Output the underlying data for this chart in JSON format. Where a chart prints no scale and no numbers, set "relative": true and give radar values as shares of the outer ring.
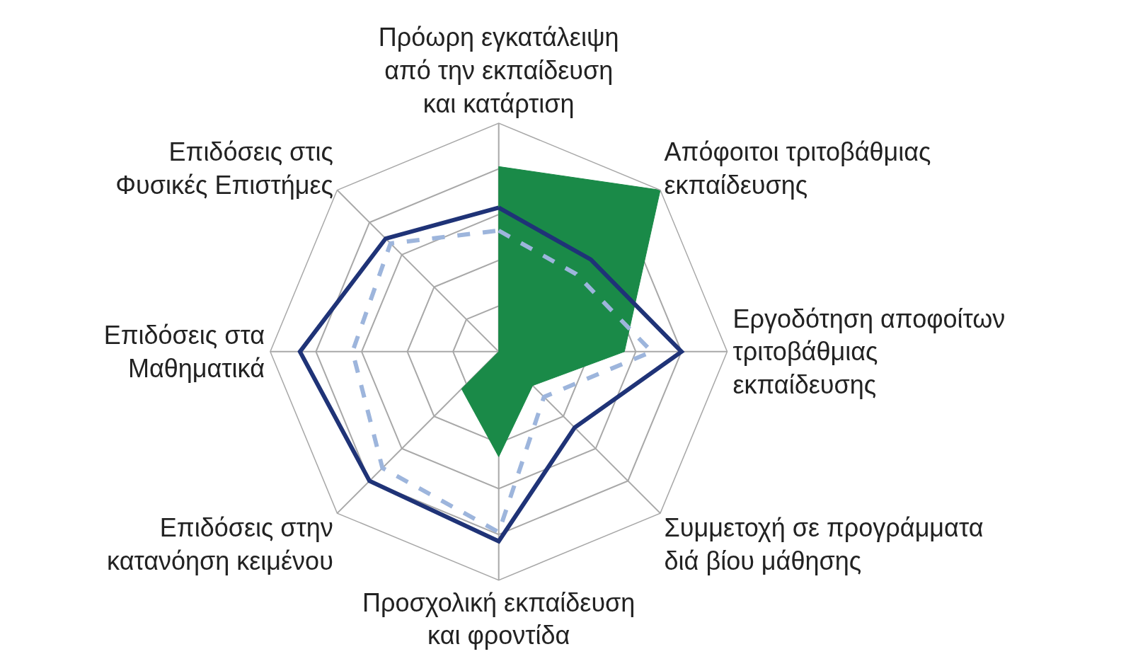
{
  "chart_data": {
    "type": "radar",
    "relative": true,
    "grid": true,
    "categories": [
      "Πρόωρη εγκατάλειψη\nαπό την εκπαίδευση\nκαι κατάρτιση",
      "Απόφοιτοι τριτοβάθμιας\nεκπαίδευσης",
      "Εργοδότηση αποφοίτων\nτριτοβάθμιας\nεκπαίδευσης",
      "Συμμετοχή σε προγράμματα\nδιά βίου μάθησης",
      "Προσχολική εκπαίδευση\nκαι φροντίδα",
      "Επιδόσεις στην\nκατανόηση κειμένου",
      "Επιδόσεις στα\nΜαθηματικά",
      "Επιδόσεις στις\nΦυσικές Επιστήμες"
    ],
    "series": [
      {
        "type": "area",
        "color": "#1a8a48",
        "values": [
          0.81,
          1.0,
          0.55,
          0.21,
          0.46,
          0.23,
          0,
          0
        ]
      },
      {
        "color": "#1f3377",
        "line_style": "solid",
        "values": [
          0.63,
          0.57,
          0.8,
          0.47,
          0.83,
          0.8,
          0.87,
          0.7
        ]
      },
      {
        "color": "#9db5dc",
        "line_style": "dashed",
        "values": [
          0.53,
          0.48,
          0.67,
          0.28,
          0.79,
          0.72,
          0.64,
          0.67
        ]
      }
    ]
  }
}
